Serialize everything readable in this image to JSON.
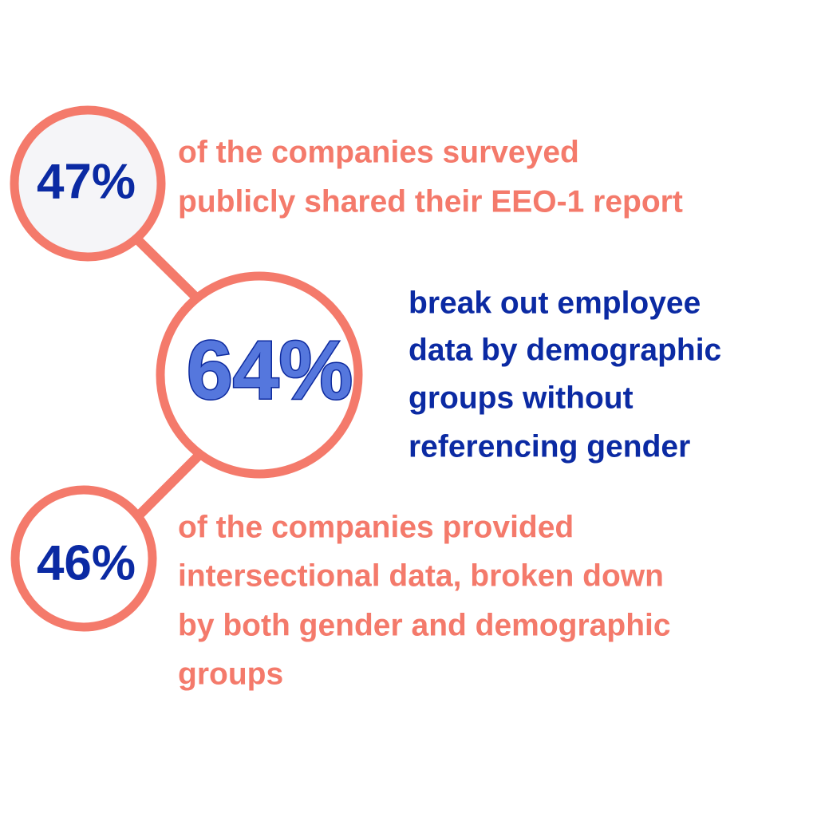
{
  "stats": [
    {
      "value": "47%",
      "lines": [
        "of the companies surveyed",
        "publicly shared their EEO-1 report"
      ]
    },
    {
      "value": "64%",
      "lines": [
        "break out employee",
        "data by demographic",
        "groups without",
        "referencing gender"
      ]
    },
    {
      "value": "46%",
      "lines": [
        "of the companies provided",
        "intersectional data, broken down",
        "by both gender and demographic",
        "groups"
      ]
    }
  ]
}
